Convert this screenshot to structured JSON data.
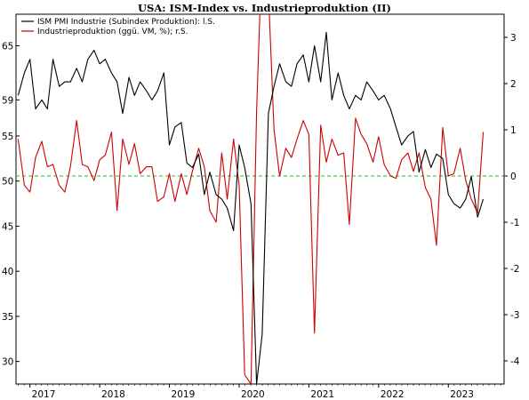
{
  "title": "USA: ISM-Index vs. Industrieproduktion (II)",
  "chart_data": {
    "type": "line",
    "title": "USA: ISM-Index vs. Industrieproduktion (II)",
    "x_ticks": [
      "2017",
      "2018",
      "2019",
      "2020",
      "2021",
      "2022",
      "2023"
    ],
    "y_left_ticks": [
      30,
      35,
      40,
      45,
      50,
      55,
      59,
      65
    ],
    "y_right_ticks": [
      -4,
      -3,
      -2,
      -1,
      0,
      1,
      2,
      3
    ],
    "ylim_left": [
      27.5,
      68.5
    ],
    "ylim_right": [
      -4.5,
      3.5
    ],
    "reference_line": {
      "axis": "right",
      "value": 0,
      "style": "dashed",
      "color": "#22bb22"
    },
    "grid": false,
    "legend_position": "top-left",
    "series": [
      {
        "name": "ISM PMI Industrie (Subindex Produktion): l.S.",
        "axis": "left",
        "color": "#000000",
        "x": [
          2016.83,
          2016.92,
          2017.0,
          2017.08,
          2017.17,
          2017.25,
          2017.33,
          2017.42,
          2017.5,
          2017.58,
          2017.67,
          2017.75,
          2017.83,
          2017.92,
          2018.0,
          2018.08,
          2018.17,
          2018.25,
          2018.33,
          2018.42,
          2018.5,
          2018.58,
          2018.67,
          2018.75,
          2018.83,
          2018.92,
          2019.0,
          2019.08,
          2019.17,
          2019.25,
          2019.33,
          2019.42,
          2019.5,
          2019.58,
          2019.67,
          2019.75,
          2019.83,
          2019.92,
          2020.0,
          2020.08,
          2020.17,
          2020.25,
          2020.33,
          2020.42,
          2020.5,
          2020.58,
          2020.67,
          2020.75,
          2020.83,
          2020.92,
          2021.0,
          2021.08,
          2021.17,
          2021.25,
          2021.33,
          2021.42,
          2021.5,
          2021.58,
          2021.67,
          2021.75,
          2021.83,
          2021.92,
          2022.0,
          2022.08,
          2022.17,
          2022.25,
          2022.33,
          2022.42,
          2022.5,
          2022.58,
          2022.67,
          2022.75,
          2022.83,
          2022.92,
          2023.0,
          2023.08,
          2023.17,
          2023.25,
          2023.33,
          2023.42,
          2023.5
        ],
        "values": [
          59.5,
          62,
          63.5,
          58,
          59,
          58,
          63.5,
          60.5,
          61,
          61,
          62.5,
          61,
          63.5,
          64.5,
          63,
          63.5,
          62,
          61,
          57.5,
          61.5,
          59.5,
          61,
          60,
          59,
          60,
          62,
          54,
          56,
          56.5,
          52,
          51.5,
          53,
          48.5,
          51,
          48.5,
          48,
          47,
          44.5,
          54,
          51.5,
          47.5,
          27.5,
          33,
          57.5,
          60.5,
          63,
          61,
          60.5,
          63,
          64,
          61,
          65,
          61,
          66.5,
          59,
          62,
          59.5,
          58,
          59.5,
          59,
          61,
          60,
          59,
          59.5,
          58,
          56,
          54,
          55,
          55.5,
          51,
          53.5,
          51.5,
          53,
          52.5,
          48.5,
          47.5,
          47,
          48,
          50.5,
          46,
          48
        ]
      },
      {
        "name": "Industrieproduktion (ggü. VM, %); r.S.",
        "axis": "right",
        "color": "#cc0000",
        "x": [
          2016.83,
          2016.92,
          2017.0,
          2017.08,
          2017.17,
          2017.25,
          2017.33,
          2017.42,
          2017.5,
          2017.58,
          2017.67,
          2017.75,
          2017.83,
          2017.92,
          2018.0,
          2018.08,
          2018.17,
          2018.25,
          2018.33,
          2018.42,
          2018.5,
          2018.58,
          2018.67,
          2018.75,
          2018.83,
          2018.92,
          2019.0,
          2019.08,
          2019.17,
          2019.25,
          2019.33,
          2019.42,
          2019.5,
          2019.58,
          2019.67,
          2019.75,
          2019.83,
          2019.92,
          2020.0,
          2020.08,
          2020.17,
          2020.25,
          2020.33,
          2020.42,
          2020.5,
          2020.58,
          2020.67,
          2020.75,
          2020.83,
          2020.92,
          2021.0,
          2021.08,
          2021.17,
          2021.25,
          2021.33,
          2021.42,
          2021.5,
          2021.58,
          2021.67,
          2021.75,
          2021.83,
          2021.92,
          2022.0,
          2022.08,
          2022.17,
          2022.25,
          2022.33,
          2022.42,
          2022.5,
          2022.58,
          2022.67,
          2022.75,
          2022.83,
          2022.92,
          2023.0,
          2023.08,
          2023.17,
          2023.25,
          2023.33,
          2023.42,
          2023.5
        ],
        "values": [
          0.8,
          -0.2,
          -0.35,
          0.4,
          0.75,
          0.2,
          0.25,
          -0.2,
          -0.35,
          0.2,
          1.2,
          0.25,
          0.2,
          -0.1,
          0.35,
          0.45,
          0.95,
          -0.75,
          0.8,
          0.25,
          0.7,
          0.05,
          0.2,
          0.2,
          -0.55,
          -0.45,
          0.05,
          -0.55,
          0.05,
          -0.4,
          0.1,
          0.6,
          0.2,
          -0.75,
          -1.0,
          0.5,
          -0.5,
          0.8,
          -0.2,
          -4.3,
          -4.5,
          1.4,
          5.0,
          4.0,
          1.0,
          0.0,
          0.6,
          0.4,
          0.8,
          1.2,
          0.9,
          -3.4,
          1.1,
          0.3,
          0.8,
          0.45,
          0.5,
          -1.05,
          1.25,
          0.9,
          0.7,
          0.3,
          0.85,
          0.25,
          0.0,
          -0.05,
          0.35,
          0.5,
          0.1,
          0.5,
          -0.25,
          -0.5,
          -1.5,
          1.05,
          0.0,
          0.05,
          0.6,
          -0.1,
          -0.5,
          -0.8,
          0.95
        ]
      }
    ]
  }
}
